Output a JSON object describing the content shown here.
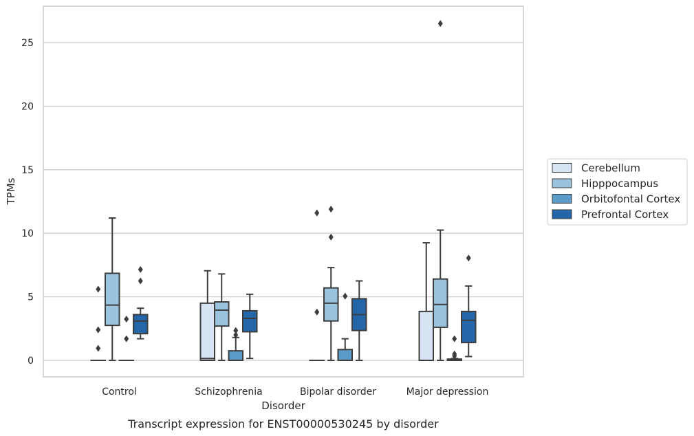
{
  "caption": "Transcript expression for ENST00000530245 by disorder",
  "chart_data": {
    "type": "box",
    "xlabel": "Disorder",
    "ylabel": "TPMs",
    "categories": [
      "Control",
      "Schizophrenia",
      "Bipolar disorder",
      "Major depression"
    ],
    "ylim": [
      -1.3,
      27.8
    ],
    "yticks": [
      0,
      5,
      10,
      15,
      20,
      25
    ],
    "grid": "horizontal",
    "legend_position": "right",
    "series": [
      {
        "name": "Cerebellum",
        "color": "#d6e4f3",
        "boxes": [
          {
            "q1": 0,
            "median": 0,
            "q3": 0,
            "whisker_low": 0,
            "whisker_high": 0,
            "outliers": [
              5.6,
              2.4,
              0.95
            ]
          },
          {
            "q1": 0,
            "median": 0.15,
            "q3": 4.5,
            "whisker_low": 0,
            "whisker_high": 7.05,
            "outliers": []
          },
          {
            "q1": 0,
            "median": 0,
            "q3": 0,
            "whisker_low": 0,
            "whisker_high": 0,
            "outliers": [
              11.6,
              3.8
            ]
          },
          {
            "q1": 0,
            "median": 0,
            "q3": 3.85,
            "whisker_low": 0,
            "whisker_high": 9.25,
            "outliers": []
          }
        ]
      },
      {
        "name": "Hipppocampus",
        "color": "#9ac3de",
        "boxes": [
          {
            "q1": 2.75,
            "median": 4.35,
            "q3": 6.85,
            "whisker_low": 0,
            "whisker_high": 11.2,
            "outliers": []
          },
          {
            "q1": 2.7,
            "median": 3.95,
            "q3": 4.6,
            "whisker_low": 0,
            "whisker_high": 6.8,
            "outliers": []
          },
          {
            "q1": 3.1,
            "median": 4.5,
            "q3": 5.7,
            "whisker_low": 0,
            "whisker_high": 7.3,
            "outliers": [
              11.9,
              9.7
            ]
          },
          {
            "q1": 2.6,
            "median": 4.4,
            "q3": 6.4,
            "whisker_low": 0,
            "whisker_high": 10.25,
            "outliers": [
              26.5
            ]
          }
        ]
      },
      {
        "name": "Orbitofontal Cortex",
        "color": "#5a9bc9",
        "boxes": [
          {
            "q1": 0,
            "median": 0,
            "q3": 0,
            "whisker_low": 0,
            "whisker_high": 0,
            "outliers": [
              3.25,
              1.7
            ]
          },
          {
            "q1": 0,
            "median": 0,
            "q3": 0.75,
            "whisker_low": 0,
            "whisker_high": 1.8,
            "outliers": [
              2.35,
              2.0
            ]
          },
          {
            "q1": 0,
            "median": 0,
            "q3": 0.85,
            "whisker_low": 0,
            "whisker_high": 1.7,
            "outliers": [
              5.05
            ]
          },
          {
            "q1": 0,
            "median": 0.05,
            "q3": 0.1,
            "whisker_low": 0,
            "whisker_high": 0.15,
            "outliers": [
              1.7,
              0.5,
              0.35
            ]
          }
        ]
      },
      {
        "name": "Prefrontal Cortex",
        "color": "#2566a9",
        "boxes": [
          {
            "q1": 2.1,
            "median": 3.1,
            "q3": 3.6,
            "whisker_low": 1.7,
            "whisker_high": 4.1,
            "outliers": [
              7.15,
              6.25
            ]
          },
          {
            "q1": 2.25,
            "median": 3.3,
            "q3": 3.9,
            "whisker_low": 0.15,
            "whisker_high": 5.2,
            "outliers": []
          },
          {
            "q1": 2.35,
            "median": 3.6,
            "q3": 4.85,
            "whisker_low": 0,
            "whisker_high": 6.25,
            "outliers": []
          },
          {
            "q1": 1.4,
            "median": 3.15,
            "q3": 3.85,
            "whisker_low": 0.3,
            "whisker_high": 5.85,
            "outliers": [
              8.05
            ]
          }
        ]
      }
    ]
  }
}
